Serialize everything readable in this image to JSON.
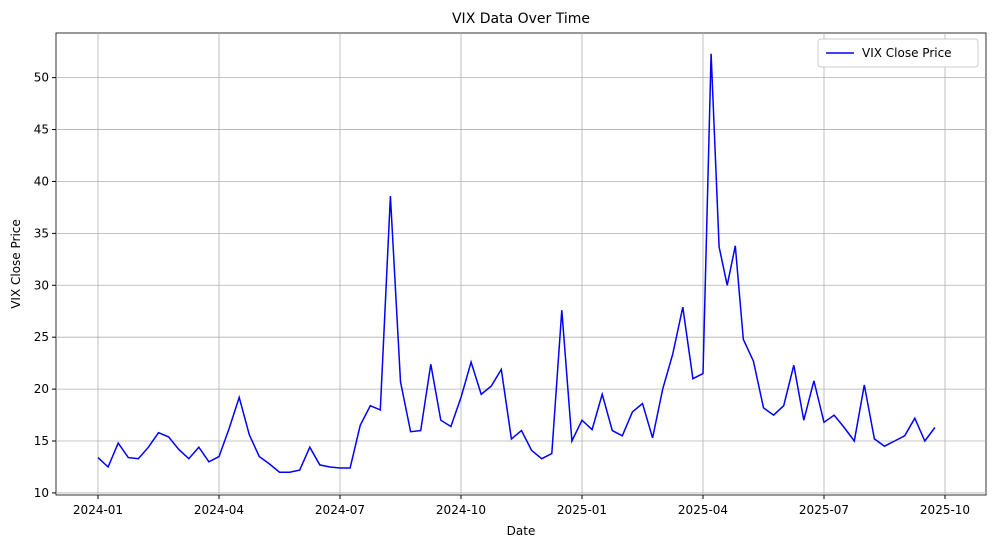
{
  "chart_data": {
    "type": "line",
    "title": "VIX Data Over Time",
    "xlabel": "Date",
    "ylabel": "VIX Close Price",
    "x": [
      "2024-01",
      "2024-01",
      "2024-01",
      "2024-01",
      "2024-02",
      "2024-02",
      "2024-02",
      "2024-02",
      "2024-03",
      "2024-03",
      "2024-03",
      "2024-03",
      "2024-04",
      "2024-04",
      "2024-04",
      "2024-04",
      "2024-05",
      "2024-05",
      "2024-05",
      "2024-05",
      "2024-06",
      "2024-06",
      "2024-06",
      "2024-06",
      "2024-07",
      "2024-07",
      "2024-07",
      "2024-07",
      "2024-08",
      "2024-08",
      "2024-08",
      "2024-08",
      "2024-09",
      "2024-09",
      "2024-09",
      "2024-09",
      "2024-10",
      "2024-10",
      "2024-10",
      "2024-10",
      "2024-11",
      "2024-11",
      "2024-11",
      "2024-11",
      "2024-12",
      "2024-12",
      "2024-12",
      "2024-12",
      "2025-01",
      "2025-01",
      "2025-01",
      "2025-01",
      "2025-02",
      "2025-02",
      "2025-02",
      "2025-02",
      "2025-03",
      "2025-03",
      "2025-03",
      "2025-03",
      "2025-04",
      "2025-04",
      "2025-04",
      "2025-04",
      "2025-04",
      "2025-05",
      "2025-05",
      "2025-05",
      "2025-05",
      "2025-06",
      "2025-06",
      "2025-06",
      "2025-06",
      "2025-07",
      "2025-07",
      "2025-07",
      "2025-07",
      "2025-08",
      "2025-08",
      "2025-08",
      "2025-08",
      "2025-09",
      "2025-09",
      "2025-09",
      "2025-09"
    ],
    "series": [
      {
        "name": "VIX Close Price",
        "color": "#0000ff",
        "values": [
          13.4,
          12.5,
          14.8,
          13.4,
          13.3,
          14.4,
          15.8,
          15.4,
          14.2,
          13.3,
          14.4,
          13.0,
          13.5,
          16.2,
          19.2,
          15.6,
          13.5,
          12.8,
          12.0,
          12.0,
          12.2,
          14.4,
          12.7,
          12.5,
          12.4,
          12.4,
          16.5,
          18.4,
          18.0,
          38.6,
          20.7,
          15.9,
          16.0,
          22.4,
          17.0,
          16.4,
          19.2,
          22.6,
          19.5,
          20.3,
          21.9,
          15.2,
          16.0,
          14.1,
          13.3,
          13.8,
          27.6,
          15.0,
          17.0,
          16.1,
          19.5,
          16.0,
          15.5,
          17.8,
          18.6,
          15.3,
          20.0,
          23.4,
          27.9,
          21.0,
          21.5,
          52.3,
          33.7,
          30.0,
          33.8,
          24.8,
          22.7,
          18.2,
          17.5,
          18.4,
          22.3,
          17.0,
          20.8,
          16.8,
          17.5,
          16.3,
          15.0,
          20.4,
          15.2,
          14.5,
          15.0,
          15.5,
          17.2,
          15.0,
          16.3
        ]
      }
    ],
    "xticks": [
      "2024-01",
      "2024-04",
      "2024-07",
      "2024-10",
      "2025-01",
      "2025-04",
      "2025-07",
      "2025-10"
    ],
    "ylim": [
      9.8,
      54.3
    ],
    "yticks": [
      10,
      15,
      20,
      25,
      30,
      35,
      40,
      45,
      50
    ],
    "grid": true,
    "legend": "upper right"
  }
}
